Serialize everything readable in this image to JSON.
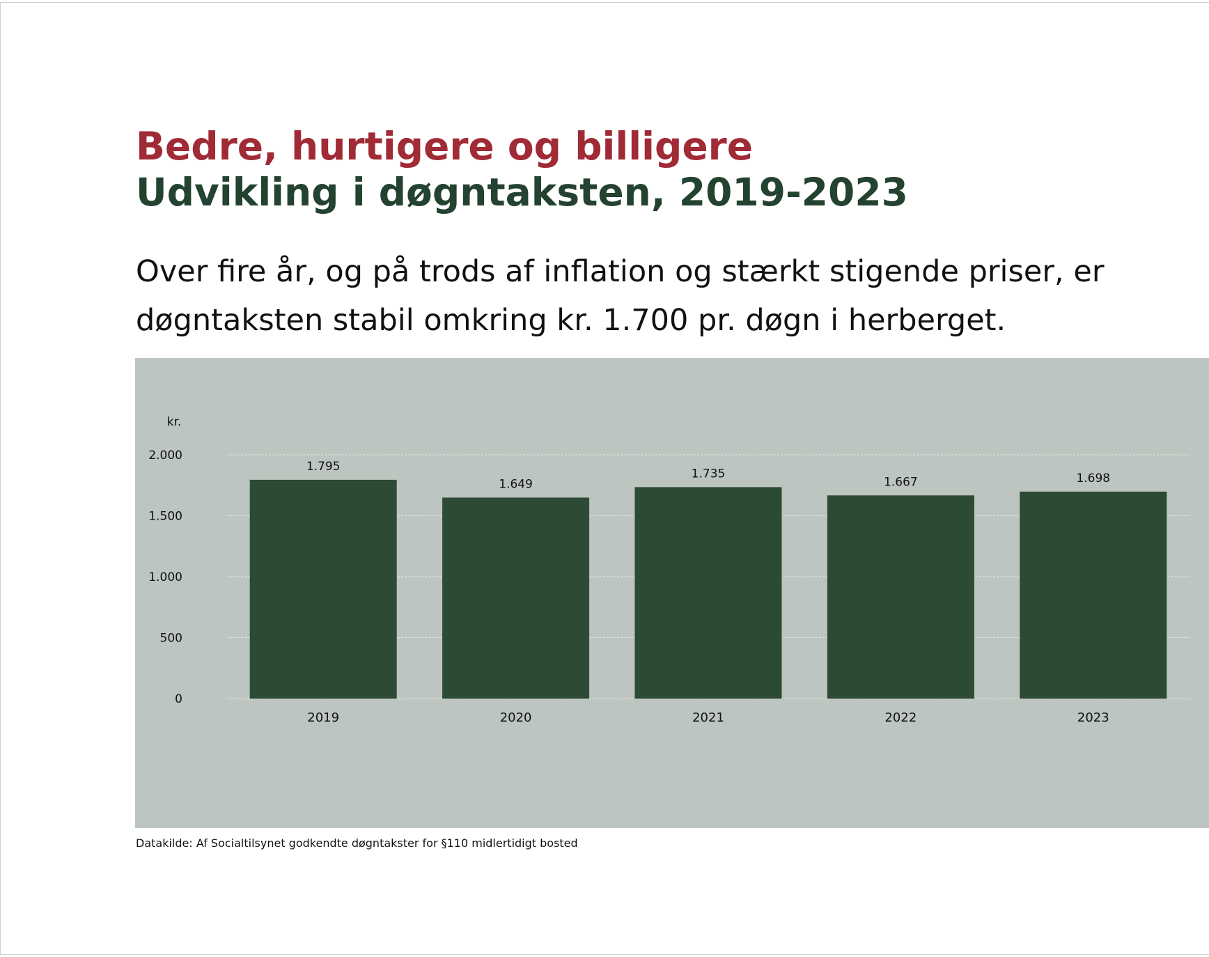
{
  "header": {
    "title": "Bedre, hurtigere og billigere",
    "subtitle": "Udvikling i døgntaksten, 2019-2023",
    "lead": "Over fire år, og på trods af inflation og stærkt stigende priser, er døgntaksten stabil omkring kr. 1.700 pr. døgn i herberget."
  },
  "footer": {
    "source": "Datakilde: Af Socialtilsynet godkendte døgntakster for §110 midlertidigt bosted"
  },
  "colors": {
    "title": "#a02a35",
    "subtitle": "#234230",
    "bar": "#2d4a34",
    "panel": "#bcc5bf",
    "grid": "#e6ece8"
  },
  "chart_data": {
    "type": "bar",
    "title": "",
    "xlabel": "",
    "ylabel": "kr.",
    "categories": [
      "2019",
      "2020",
      "2021",
      "2022",
      "2023"
    ],
    "values": [
      1795,
      1649,
      1735,
      1667,
      1698
    ],
    "value_labels": [
      "1.795",
      "1.649",
      "1.735",
      "1.667",
      "1.698"
    ],
    "ylim": [
      0,
      2000
    ],
    "yticks": [
      0,
      500,
      1000,
      1500,
      2000
    ],
    "ytick_labels": [
      "0",
      "500",
      "1.000",
      "1.500",
      "2.000"
    ],
    "grid": true,
    "legend": "none"
  }
}
